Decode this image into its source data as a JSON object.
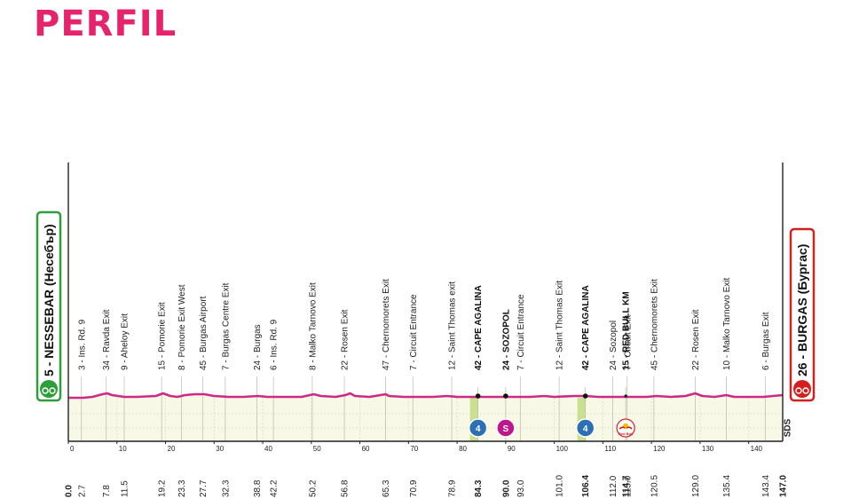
{
  "page": {
    "title": "PERFIL"
  },
  "colors": {
    "title": "#e6246e",
    "profile_line": "#cc2a86",
    "fill": "#f7f8e6",
    "start_box": "#2e9e3a",
    "finish_box": "#d0201f",
    "kom_badge": "#2c6fb2",
    "sprint_badge": "#c0168c",
    "kom_highlight": "#c9e08e"
  },
  "chart_data": {
    "type": "area",
    "title": "",
    "xlabel": "",
    "ylabel": "",
    "xlim": [
      0,
      147.0
    ],
    "ylim": [
      0,
      60
    ],
    "x_ticks": [
      0,
      10,
      20,
      30,
      40,
      50,
      60,
      70,
      80,
      90,
      100,
      110,
      120,
      130,
      140
    ],
    "grid": true,
    "vertical_label": "SDS",
    "start": {
      "km": 0.0,
      "label": "5 - NESSEBAR (Несебър)",
      "icon": "start-bike-icon"
    },
    "finish": {
      "km": 147.0,
      "label": "26 - BURGAS (Бургас)",
      "icon": "finish-bike-icon"
    },
    "series": [
      {
        "values": [
          [
            0,
            4
          ],
          [
            1.5,
            4
          ],
          [
            3,
            4
          ],
          [
            5,
            5
          ],
          [
            7,
            8
          ],
          [
            8,
            9
          ],
          [
            9,
            7
          ],
          [
            11.5,
            5
          ],
          [
            14,
            5
          ],
          [
            18,
            6
          ],
          [
            19.5,
            9
          ],
          [
            21,
            6
          ],
          [
            22.5,
            5
          ],
          [
            24,
            7
          ],
          [
            26,
            8
          ],
          [
            28,
            8
          ],
          [
            30,
            6
          ],
          [
            33,
            5
          ],
          [
            36,
            5
          ],
          [
            39,
            6
          ],
          [
            41,
            5
          ],
          [
            45,
            5
          ],
          [
            48,
            5
          ],
          [
            50.5,
            8
          ],
          [
            52,
            6
          ],
          [
            55,
            5
          ],
          [
            57,
            7
          ],
          [
            58,
            9
          ],
          [
            59,
            6
          ],
          [
            62,
            5
          ],
          [
            65.3,
            8
          ],
          [
            66,
            6
          ],
          [
            69,
            5
          ],
          [
            72,
            5
          ],
          [
            75,
            5
          ],
          [
            78,
            6
          ],
          [
            80,
            5
          ],
          [
            83,
            5
          ],
          [
            84.3,
            5
          ],
          [
            87,
            5
          ],
          [
            89,
            5
          ],
          [
            90.5,
            5
          ],
          [
            93,
            5
          ],
          [
            95,
            5
          ],
          [
            98,
            6
          ],
          [
            100,
            5
          ],
          [
            104,
            6
          ],
          [
            106.4,
            6
          ],
          [
            109,
            5
          ],
          [
            112,
            5
          ],
          [
            114.7,
            5
          ],
          [
            117,
            5
          ],
          [
            119,
            5
          ],
          [
            121,
            6
          ],
          [
            124,
            5
          ],
          [
            127,
            6
          ],
          [
            129,
            9
          ],
          [
            130.5,
            6
          ],
          [
            133,
            5
          ],
          [
            135.4,
            7
          ],
          [
            137,
            5
          ],
          [
            140,
            5
          ],
          [
            143,
            5
          ],
          [
            145,
            6
          ],
          [
            147,
            7
          ]
        ]
      }
    ],
    "waypoints": [
      {
        "km": 2.7,
        "label": "3 - Ins. Rd. 9"
      },
      {
        "km": 7.8,
        "label": "34 - Ravda Exit"
      },
      {
        "km": 11.5,
        "label": "9 - Aheloy Exit"
      },
      {
        "km": 19.2,
        "label": "15 - Pomorie Exit"
      },
      {
        "km": 23.3,
        "label": "8 - Pomorie Exit West"
      },
      {
        "km": 27.7,
        "label": "45 - Burgas Airport"
      },
      {
        "km": 32.3,
        "label": "7 - Burgas Centre Exit"
      },
      {
        "km": 38.8,
        "label": "24 - Burgas"
      },
      {
        "km": 42.2,
        "label": "6 - Ins. Rd. 9"
      },
      {
        "km": 50.2,
        "label": "8 - Malko Tarnovo Exit"
      },
      {
        "km": 56.8,
        "label": "22 - Rosen Exit"
      },
      {
        "km": 65.3,
        "label": "47 - Chernomorets Exit"
      },
      {
        "km": 70.9,
        "label": "7 - Circuit Entrance"
      },
      {
        "km": 78.9,
        "label": "12 - Saint Thomas exit"
      },
      {
        "km": 84.3,
        "label": "42 - CAPE AGALINA",
        "major": true
      },
      {
        "km": 90.0,
        "label": "24 - SOZOPOL",
        "major": true
      },
      {
        "km": 93.0,
        "label": "7 - Circuit Entrance"
      },
      {
        "km": 101.0,
        "label": "12 - Saint Thomas Exit"
      },
      {
        "km": 106.4,
        "label": "42 - CAPE AGALINA",
        "major": true
      },
      {
        "km": 112.0,
        "label": "24 - Sozopol"
      },
      {
        "km": 114.7,
        "label": "15 - RED BULL KM",
        "major": true
      },
      {
        "km": 115.0,
        "label": "7 - Circuit Exit"
      },
      {
        "km": 120.5,
        "label": "45 - Chernomorets Exit"
      },
      {
        "km": 129.0,
        "label": "22 - Rosen Exit"
      },
      {
        "km": 135.4,
        "label": "10 - Malko Tarnovo Exit"
      },
      {
        "km": 143.4,
        "label": "6 - Burgas Exit"
      }
    ],
    "distance_labels": [
      {
        "km": 0.0,
        "text": "0.0",
        "major": true
      },
      {
        "km": 2.7,
        "text": "2.7"
      },
      {
        "km": 7.8,
        "text": "7.8"
      },
      {
        "km": 11.5,
        "text": "11.5"
      },
      {
        "km": 19.2,
        "text": "19.2"
      },
      {
        "km": 23.3,
        "text": "23.3"
      },
      {
        "km": 27.7,
        "text": "27.7"
      },
      {
        "km": 32.3,
        "text": "32.3"
      },
      {
        "km": 38.8,
        "text": "38.8"
      },
      {
        "km": 42.2,
        "text": "42.2"
      },
      {
        "km": 50.2,
        "text": "50.2"
      },
      {
        "km": 56.8,
        "text": "56.8"
      },
      {
        "km": 65.3,
        "text": "65.3"
      },
      {
        "km": 70.9,
        "text": "70.9"
      },
      {
        "km": 78.9,
        "text": "78.9"
      },
      {
        "km": 84.3,
        "text": "84.3",
        "major": true
      },
      {
        "km": 90.0,
        "text": "90.0",
        "major": true
      },
      {
        "km": 93.0,
        "text": "93.0"
      },
      {
        "km": 101.0,
        "text": "101.0"
      },
      {
        "km": 106.4,
        "text": "106.4",
        "major": true
      },
      {
        "km": 112.0,
        "text": "112.0"
      },
      {
        "km": 114.7,
        "text": "114.7",
        "major": true
      },
      {
        "km": 115.0,
        "text": "115.0"
      },
      {
        "km": 120.5,
        "text": "120.5"
      },
      {
        "km": 129.0,
        "text": "129.0"
      },
      {
        "km": 135.4,
        "text": "135.4"
      },
      {
        "km": 143.4,
        "text": "143.4"
      },
      {
        "km": 147.0,
        "text": "147.0",
        "major": true
      }
    ],
    "kom_markers": [
      {
        "km": 84.3,
        "category": "4"
      },
      {
        "km": 106.4,
        "category": "4"
      }
    ],
    "sprint_markers": [
      {
        "km": 90.0,
        "label": "S"
      }
    ],
    "bonus_markers": [
      {
        "km": 114.7,
        "label": "Red Bull",
        "icon": "red-bull-icon"
      }
    ]
  }
}
